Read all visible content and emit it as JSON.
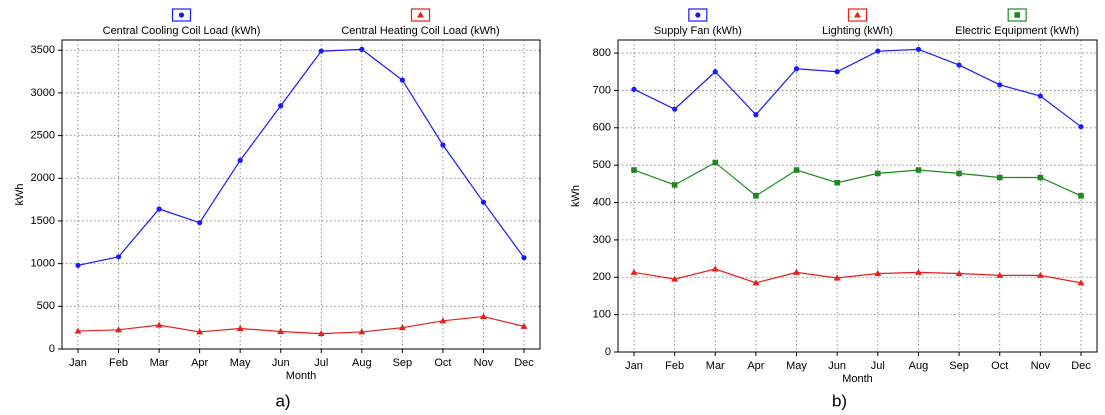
{
  "chart_data": [
    {
      "type": "line",
      "caption": "a)",
      "xlabel": "Month",
      "ylabel": "kWh",
      "categories": [
        "Jan",
        "Feb",
        "Mar",
        "Apr",
        "May",
        "Jun",
        "Jul",
        "Aug",
        "Sep",
        "Oct",
        "Nov",
        "Dec"
      ],
      "ylim": [
        0,
        3620
      ],
      "yticks": [
        0,
        500,
        1000,
        1500,
        2000,
        2500,
        3000,
        3500
      ],
      "grid": true,
      "series": [
        {
          "name": "Central Cooling Coil Load (kWh)",
          "color": "#1a1aff",
          "marker": "circle",
          "values": [
            980,
            1080,
            1640,
            1480,
            2210,
            2850,
            3490,
            3510,
            3150,
            2390,
            1720,
            1070
          ]
        },
        {
          "name": "Central Heating Coil Load (kWh)",
          "color": "#e8201a",
          "marker": "triangle",
          "values": [
            210,
            225,
            280,
            200,
            240,
            205,
            180,
            200,
            250,
            330,
            380,
            265
          ]
        }
      ]
    },
    {
      "type": "line",
      "caption": "b)",
      "xlabel": "Month",
      "ylabel": "kWh",
      "categories": [
        "Jan",
        "Feb",
        "Mar",
        "Apr",
        "May",
        "Jun",
        "Jul",
        "Aug",
        "Sep",
        "Oct",
        "Nov",
        "Dec"
      ],
      "ylim": [
        0,
        835
      ],
      "yticks": [
        0,
        100,
        200,
        300,
        400,
        500,
        600,
        700,
        800
      ],
      "grid": true,
      "series": [
        {
          "name": "Supply Fan (kWh)",
          "color": "#1a1aff",
          "marker": "circle",
          "values": [
            703,
            650,
            750,
            635,
            758,
            750,
            805,
            810,
            768,
            715,
            685,
            603
          ]
        },
        {
          "name": "Lighting (kWh)",
          "color": "#e8201a",
          "marker": "triangle",
          "values": [
            213,
            195,
            222,
            185,
            213,
            198,
            210,
            213,
            210,
            205,
            205,
            185
          ]
        },
        {
          "name": "Electric Equipment (kWh)",
          "color": "#1e8a1e",
          "marker": "square",
          "values": [
            487,
            447,
            507,
            418,
            487,
            453,
            478,
            487,
            478,
            467,
            467,
            418
          ]
        }
      ]
    }
  ]
}
